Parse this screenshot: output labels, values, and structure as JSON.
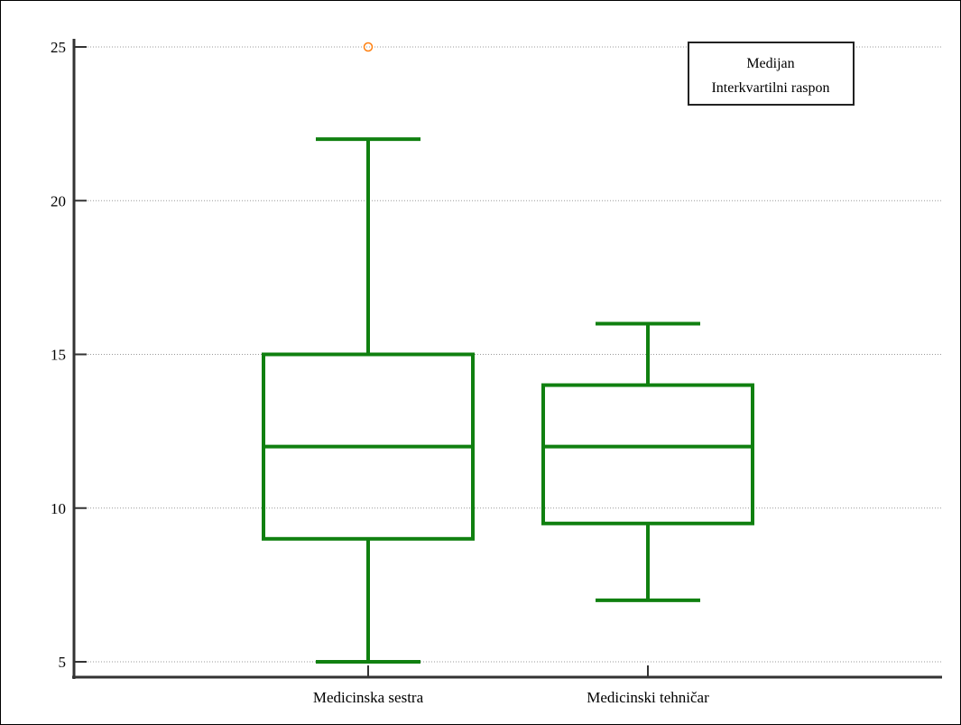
{
  "chart_data": {
    "type": "boxplot",
    "title": "",
    "xlabel": "",
    "ylabel": "",
    "ylim": [
      4.5,
      25.8
    ],
    "yticks": [
      5,
      10,
      15,
      20,
      25
    ],
    "grid": true,
    "legend": {
      "placement": "top-right",
      "entries": [
        "Medijan",
        "Interkvartilni raspon"
      ]
    },
    "colors": {
      "box": "#108010",
      "outlier": "#ff7f0e",
      "axis": "#333333",
      "grid": "#999999"
    },
    "categories": [
      "Medicinska sestra",
      "Medicinski tehničar"
    ],
    "boxes": [
      {
        "name": "Medicinska sestra",
        "whisker_low": 5,
        "q1": 9,
        "median": 12,
        "q3": 15,
        "whisker_high": 22,
        "outliers": [
          25
        ]
      },
      {
        "name": "Medicinski tehničar",
        "whisker_low": 7,
        "q1": 9.5,
        "median": 12,
        "q3": 14,
        "whisker_high": 16,
        "outliers": []
      }
    ]
  }
}
